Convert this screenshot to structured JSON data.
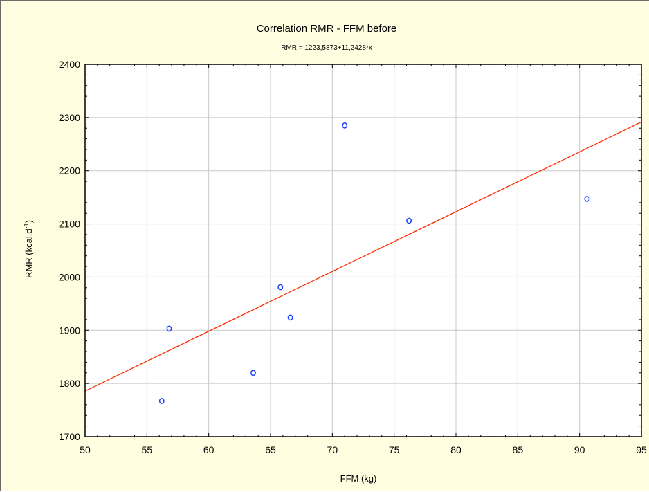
{
  "chart_data": {
    "type": "scatter",
    "title": "Correlation RMR - FFM before",
    "subtitle": "RMR = 1223,5873+11,2428*x",
    "xlabel": "FFM (kg)",
    "ylabel": "RMR (kcal.d",
    "ylabel_sup": "-1",
    "ylabel_end": ")",
    "xlim": [
      50,
      95
    ],
    "ylim": [
      1700,
      2400
    ],
    "xticks": [
      50,
      55,
      60,
      65,
      70,
      75,
      80,
      85,
      90,
      95
    ],
    "yticks": [
      1700,
      1800,
      1900,
      2000,
      2100,
      2200,
      2300,
      2400
    ],
    "grid": true,
    "points": [
      {
        "x": 56.2,
        "y": 1767
      },
      {
        "x": 56.8,
        "y": 1903
      },
      {
        "x": 63.6,
        "y": 1820
      },
      {
        "x": 65.8,
        "y": 1981
      },
      {
        "x": 66.6,
        "y": 1924
      },
      {
        "x": 71.0,
        "y": 2285
      },
      {
        "x": 76.2,
        "y": 2106
      },
      {
        "x": 90.6,
        "y": 2147
      }
    ],
    "fit_line": {
      "intercept": 1223.5873,
      "slope": 11.2428
    },
    "colors": {
      "background": "#fffee0",
      "plot_background": "#ffffff",
      "points": "#1f3fff",
      "fit_line": "#ff2a00",
      "grid": "#c8c8c8"
    }
  }
}
